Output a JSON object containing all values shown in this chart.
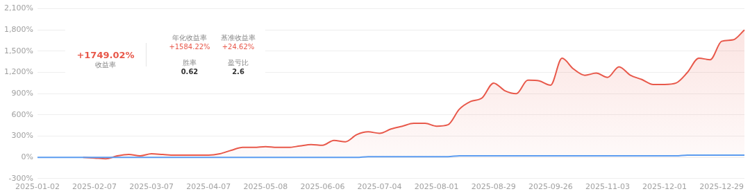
{
  "chart_data": {
    "type": "area",
    "categories": [
      "2025-01-02",
      null,
      null,
      null,
      null,
      "2025-02-07",
      null,
      null,
      null,
      null,
      "2025-03-07",
      null,
      null,
      null,
      null,
      "2025-04-07",
      null,
      null,
      null,
      null,
      "2025-05-08",
      null,
      null,
      null,
      null,
      "2025-06-06",
      null,
      null,
      null,
      null,
      "2025-07-04",
      null,
      null,
      null,
      null,
      "2025-08-01",
      null,
      null,
      null,
      null,
      "2025-08-29",
      null,
      null,
      null,
      null,
      "2025-09-26",
      null,
      null,
      null,
      null,
      "2025-11-03",
      null,
      null,
      null,
      null,
      "2025-12-01",
      null,
      null,
      null,
      null,
      "2025-12-29",
      null,
      null
    ],
    "series": [
      {
        "color": "#e8584a",
        "values": [
          null,
          null,
          null,
          null,
          0,
          -10,
          -20,
          20,
          40,
          20,
          50,
          40,
          30,
          30,
          30,
          30,
          50,
          100,
          140,
          140,
          150,
          140,
          140,
          160,
          180,
          170,
          240,
          220,
          320,
          360,
          340,
          400,
          440,
          480,
          480,
          440,
          460,
          680,
          790,
          840,
          1050,
          940,
          900,
          1090,
          1080,
          1020,
          1400,
          1250,
          1160,
          1190,
          1130,
          1280,
          1160,
          1100,
          1030,
          1030,
          1050,
          1200,
          1400,
          1380,
          1640,
          1660,
          1800
        ]
      },
      {
        "type": "line",
        "color": "#5b9cf0",
        "values": [
          0,
          0,
          0,
          0,
          0,
          0,
          0,
          0,
          0,
          0,
          0,
          0,
          0,
          0,
          0,
          0,
          0,
          0,
          0,
          0,
          0,
          0,
          0,
          0,
          0,
          0,
          0,
          0,
          0,
          10,
          10,
          10,
          10,
          10,
          10,
          10,
          10,
          20,
          20,
          20,
          20,
          20,
          20,
          20,
          20,
          20,
          20,
          20,
          20,
          20,
          20,
          20,
          20,
          20,
          20,
          20,
          20,
          30,
          30,
          30,
          30,
          30,
          30
        ]
      }
    ],
    "ylim": [
      -300,
      2100
    ],
    "yticks": [
      {
        "value": -300,
        "label": "-300%"
      },
      {
        "value": 0,
        "label": "0%"
      },
      {
        "value": 300,
        "label": "300%"
      },
      {
        "value": 600,
        "label": "600%"
      },
      {
        "value": 900,
        "label": "900%"
      },
      {
        "value": 1200,
        "label": "1,200%"
      },
      {
        "value": 1500,
        "label": "1,500%"
      },
      {
        "value": 1800,
        "label": "1,800%"
      },
      {
        "value": 2100,
        "label": "2,100%"
      }
    ],
    "grid": "y",
    "legend": false,
    "marker": "none",
    "line_style": "solid",
    "annotations": [
      "+1749.02%",
      "收益率",
      "年化收益率",
      "+1584.22%",
      "基准收益率",
      "+24.62%",
      "胜率",
      "0.62",
      "盈亏比",
      "2.6"
    ]
  }
}
